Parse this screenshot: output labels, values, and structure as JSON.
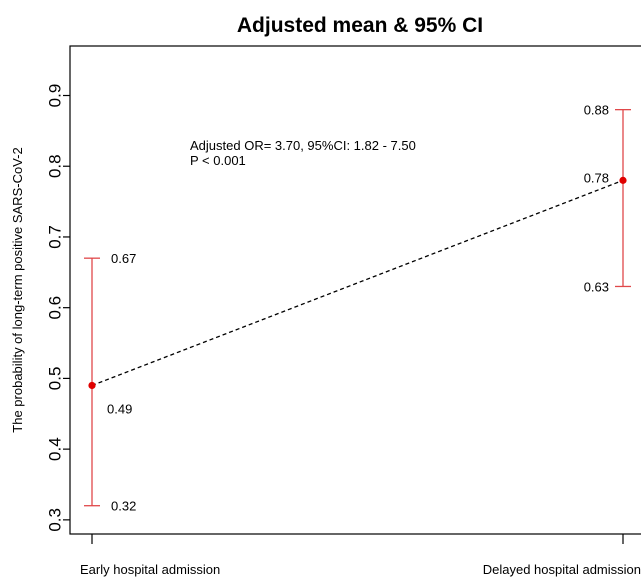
{
  "chart_data": {
    "type": "scatter",
    "title": "Adjusted mean & 95% CI",
    "xlabel": "",
    "ylabel": "The probability of long-term positive SARS-CoV-2",
    "ylim": [
      0.28,
      0.97
    ],
    "yticks": [
      0.3,
      0.4,
      0.5,
      0.6,
      0.7,
      0.8,
      0.9
    ],
    "ytick_labels": [
      "0.3",
      "0.4",
      "0.5",
      "0.6",
      "0.7",
      "0.8",
      "0.9"
    ],
    "categories": [
      "Early hospital admission",
      "Delayed hospital admission"
    ],
    "points": [
      {
        "category": "Early hospital admission",
        "mean": 0.49,
        "lower": 0.32,
        "upper": 0.67,
        "mean_label": "0.49",
        "lower_label": "0.32",
        "upper_label": "0.67"
      },
      {
        "category": "Delayed hospital admission",
        "mean": 0.78,
        "lower": 0.63,
        "upper": 0.88,
        "mean_label": "0.78",
        "lower_label": "0.63",
        "upper_label": "0.88"
      }
    ],
    "connector": "dashed",
    "annotation": [
      "Adjusted OR= 3.70, 95%CI: 1.82 - 7.50",
      "P < 0.001"
    ],
    "grid": false,
    "colors": {
      "points": "#e00000",
      "errorbars": "#e0484a",
      "connector": "#000000",
      "axis": "#000000"
    }
  }
}
